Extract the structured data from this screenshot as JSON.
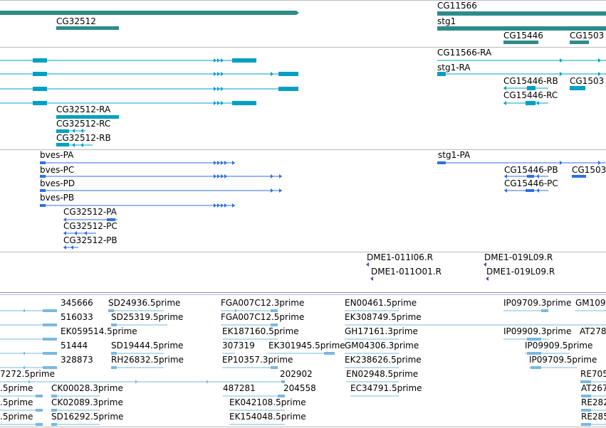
{
  "gene_track": {
    "labels": [
      "CG32512",
      "CG11566",
      "stg1",
      "CG15446",
      "CG1503"
    ]
  },
  "transcript_track_a": {
    "labels": [
      "CG11566-RA",
      "stg1-RA",
      "CG15446-RB",
      "CG1503",
      "CG15446-RC",
      "CG32512-RA",
      "CG32512-RC",
      "CG32512-RB"
    ]
  },
  "transcript_track_b": {
    "labels": [
      "bves-PA",
      "stg1-PA",
      "bves-PC",
      "CG15446-PB",
      "CG1503",
      "bves-PD",
      "CG15446-PC",
      "bves-PB",
      "CG32512-PA",
      "CG32512-PC",
      "CG32512-PB"
    ]
  },
  "probe_track": {
    "labels": [
      "DME1-011I06.R",
      "DME1-019L09.R",
      "DME1-011O01.R",
      "DME1-019L09.R"
    ]
  },
  "est_track": {
    "labels": [
      "345666",
      "SD24936.5prime",
      "FGA007C12.3prime",
      "EN00461.5prime",
      "IP09709.3prime",
      "GM109",
      "516033",
      "SD25319.5prime",
      "FGA007C12.5prime",
      "EK308749.5prime",
      "EK059514.5prime",
      "EK187160.5prime",
      "GH17161.3prime",
      "IP09909.3prime",
      "AT278",
      "51444",
      "SD19444.5prime",
      "307319",
      "EK301945.5prime",
      "GM04306.3prime",
      "IP09909.5prime",
      "328873",
      "RH26832.5prime",
      "EP10357.3prime",
      "EK238626.5prime",
      "IP09709.5prime",
      "7272.5prime",
      "202902",
      "EN02948.5prime",
      "RE705",
      ".5prime",
      "CK00028.3prime",
      "487281",
      "204558",
      "EC34791.5prime",
      "AT267",
      ".5prime",
      "CK02089.3prime",
      "EK042108.5prime",
      "RE282",
      ".5prime",
      "SD16292.5prime",
      "EK154048.5prime",
      "RE285"
    ]
  },
  "colors": {
    "gene": "#2e8b8b",
    "transcript_a": "#00a0c0",
    "transcript_b": "#2f6fe0",
    "probe": "#6a3fa0",
    "est": "#7ab8e0",
    "separator": "#bbbbbb",
    "purple_divider": "#9a7cc0"
  }
}
